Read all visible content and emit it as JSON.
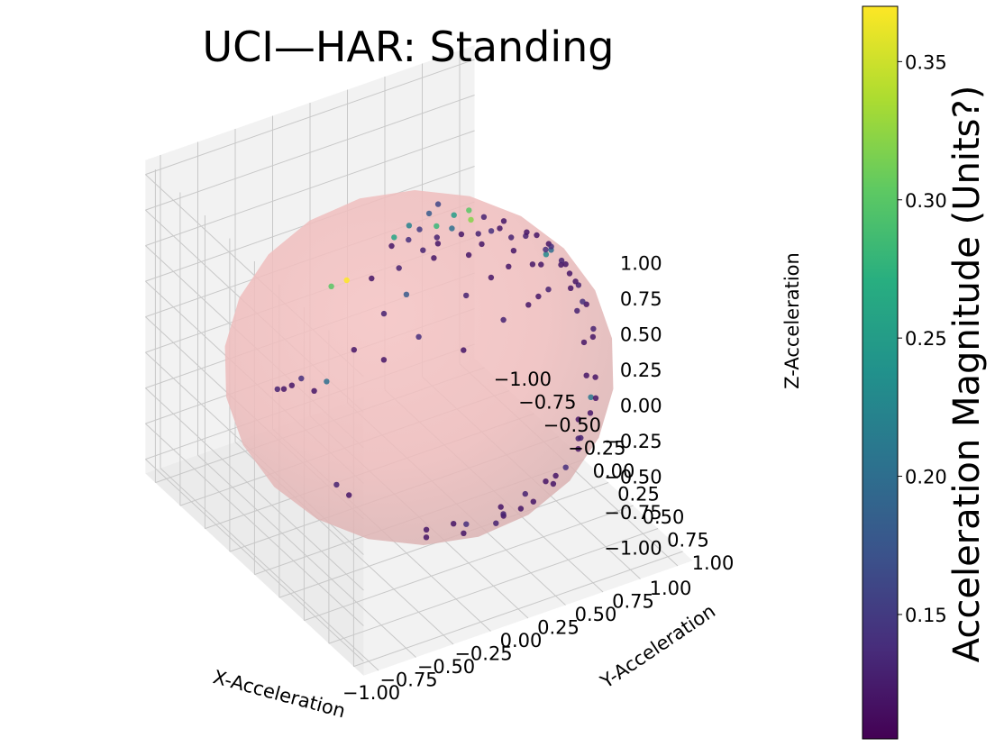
{
  "chart_data": {
    "type": "scatter",
    "title": "UCI—HAR: Standing",
    "xlabel": "X-Acceleration",
    "ylabel": "Y-Acceleration",
    "zlabel": "Z-Acceleration",
    "xlim": [
      -1.1,
      1.1
    ],
    "ylim": [
      -1.1,
      1.1
    ],
    "zlim": [
      -1.1,
      1.1
    ],
    "x_ticks": [
      "−1.00",
      "−0.75",
      "−0.50",
      "−0.25",
      "0.00",
      "0.25",
      "0.50",
      "0.75",
      "1.00"
    ],
    "y_ticks": [
      "−1.00",
      "−0.75",
      "−0.50",
      "−0.25",
      "0.00",
      "0.25",
      "0.50",
      "0.75",
      "1.00"
    ],
    "z_ticks": [
      "−1.00",
      "−0.75",
      "−0.50",
      "−0.25",
      "0.00",
      "0.25",
      "0.50",
      "0.75",
      "1.00"
    ],
    "tick_values": [
      -1.0,
      -0.75,
      -0.5,
      -0.25,
      0.0,
      0.25,
      0.5,
      0.75,
      1.0
    ],
    "grid": true,
    "sphere": {
      "radius": 1.0,
      "color": "#f4bcbc",
      "opacity": 0.7
    },
    "colorbar": {
      "label": "Acceleration Magnitude (Units?)",
      "range": [
        0.105,
        0.37
      ],
      "ticks": [
        0.15,
        0.2,
        0.25,
        0.3,
        0.35
      ],
      "tick_labels": [
        "0.15",
        "0.20",
        "0.25",
        "0.30",
        "0.35"
      ],
      "colormap": "viridis"
    },
    "points": [
      {
        "x": 0.05,
        "y": 0.1,
        "z": 0.99,
        "c": 0.28
      },
      {
        "x": 0.12,
        "y": 0.15,
        "z": 0.98,
        "c": 0.2
      },
      {
        "x": -0.05,
        "y": 0.08,
        "z": 0.99,
        "c": 0.15
      },
      {
        "x": 0.2,
        "y": 0.05,
        "z": 0.98,
        "c": 0.25
      },
      {
        "x": 0.28,
        "y": 0.1,
        "z": 0.95,
        "c": 0.32
      },
      {
        "x": 0.32,
        "y": 0.02,
        "z": 0.95,
        "c": 0.3
      },
      {
        "x": -0.15,
        "y": 0.12,
        "z": 0.98,
        "c": 0.14
      },
      {
        "x": -0.08,
        "y": 0.02,
        "z": 0.99,
        "c": 0.22
      },
      {
        "x": 0.08,
        "y": -0.02,
        "z": 0.99,
        "c": 0.18
      },
      {
        "x": 0.15,
        "y": 0.2,
        "z": 0.96,
        "c": 0.12
      },
      {
        "x": -0.2,
        "y": 0.05,
        "z": 0.97,
        "c": 0.26
      },
      {
        "x": 0.0,
        "y": 0.18,
        "z": 0.98,
        "c": 0.13
      },
      {
        "x": -0.55,
        "y": 0.1,
        "z": 0.83,
        "c": 0.37
      },
      {
        "x": -0.62,
        "y": 0.05,
        "z": 0.78,
        "c": 0.3
      },
      {
        "x": -0.45,
        "y": 0.2,
        "z": 0.87,
        "c": 0.12
      },
      {
        "x": -0.3,
        "y": 0.25,
        "z": 0.92,
        "c": 0.13
      },
      {
        "x": 0.22,
        "y": 0.3,
        "z": 0.93,
        "c": 0.12
      },
      {
        "x": 0.35,
        "y": 0.2,
        "z": 0.91,
        "c": 0.14
      },
      {
        "x": 0.1,
        "y": 0.35,
        "z": 0.93,
        "c": 0.12
      },
      {
        "x": -0.1,
        "y": 0.3,
        "z": 0.95,
        "c": 0.12
      },
      {
        "x": 0.45,
        "y": 0.25,
        "z": 0.86,
        "c": 0.13
      },
      {
        "x": 0.3,
        "y": 0.45,
        "z": 0.84,
        "c": 0.12
      },
      {
        "x": -0.35,
        "y": 0.4,
        "z": 0.85,
        "c": 0.18
      },
      {
        "x": -0.7,
        "y": 0.4,
        "z": 0.59,
        "c": 0.12
      },
      {
        "x": -0.4,
        "y": 0.6,
        "z": 0.7,
        "c": 0.14
      },
      {
        "x": -0.2,
        "y": 0.75,
        "z": 0.63,
        "c": 0.12
      },
      {
        "x": 0.1,
        "y": 0.7,
        "z": 0.7,
        "c": 0.13
      },
      {
        "x": 0.3,
        "y": 0.65,
        "z": 0.7,
        "c": 0.12
      },
      {
        "x": 0.5,
        "y": 0.55,
        "z": 0.67,
        "c": 0.13
      },
      {
        "x": 0.55,
        "y": 0.4,
        "z": 0.73,
        "c": 0.12
      },
      {
        "x": 0.65,
        "y": 0.3,
        "z": 0.7,
        "c": 0.23
      },
      {
        "x": 0.75,
        "y": 0.2,
        "z": 0.63,
        "c": 0.2
      },
      {
        "x": 0.8,
        "y": 0.1,
        "z": 0.59,
        "c": 0.12
      },
      {
        "x": 0.85,
        "y": 0.05,
        "z": 0.52,
        "c": 0.14
      },
      {
        "x": 0.88,
        "y": 0.15,
        "z": 0.45,
        "c": 0.12
      },
      {
        "x": 0.9,
        "y": 0.25,
        "z": 0.36,
        "c": 0.13
      },
      {
        "x": 0.92,
        "y": 0.3,
        "z": 0.25,
        "c": 0.12
      },
      {
        "x": 0.94,
        "y": 0.1,
        "z": 0.33,
        "c": 0.12
      },
      {
        "x": 0.96,
        "y": 0.2,
        "z": 0.19,
        "c": 0.14
      },
      {
        "x": 0.98,
        "y": 0.05,
        "z": 0.18,
        "c": 0.12
      },
      {
        "x": 0.99,
        "y": 0.1,
        "z": 0.05,
        "c": 0.13
      },
      {
        "x": 0.97,
        "y": 0.2,
        "z": -0.1,
        "c": 0.12
      },
      {
        "x": 0.92,
        "y": 0.3,
        "z": -0.25,
        "c": 0.12
      },
      {
        "x": 0.85,
        "y": 0.45,
        "z": -0.28,
        "c": 0.21
      },
      {
        "x": 0.78,
        "y": 0.55,
        "z": -0.3,
        "c": 0.12
      },
      {
        "x": 0.8,
        "y": 0.4,
        "z": -0.45,
        "c": 0.12
      },
      {
        "x": 0.7,
        "y": 0.55,
        "z": -0.45,
        "c": 0.13
      },
      {
        "x": 0.6,
        "y": 0.7,
        "z": -0.39,
        "c": 0.12
      },
      {
        "x": 0.45,
        "y": 0.8,
        "z": -0.4,
        "c": 0.14
      },
      {
        "x": 0.35,
        "y": 0.85,
        "z": -0.39,
        "c": 0.12
      },
      {
        "x": 0.25,
        "y": 0.9,
        "z": -0.36,
        "c": 0.12
      },
      {
        "x": 0.1,
        "y": 0.92,
        "z": -0.38,
        "c": 0.13
      },
      {
        "x": -0.05,
        "y": 0.9,
        "z": -0.43,
        "c": 0.12
      },
      {
        "x": 0.15,
        "y": 0.8,
        "z": -0.58,
        "c": 0.12
      },
      {
        "x": 0.3,
        "y": 0.7,
        "z": -0.65,
        "c": 0.12
      },
      {
        "x": 0.05,
        "y": 0.7,
        "z": -0.71,
        "c": 0.13
      },
      {
        "x": -0.1,
        "y": 0.6,
        "z": -0.79,
        "c": 0.12
      },
      {
        "x": 0.2,
        "y": 0.55,
        "z": -0.81,
        "c": 0.12
      },
      {
        "x": -0.25,
        "y": 0.45,
        "z": -0.86,
        "c": 0.12
      },
      {
        "x": 0.05,
        "y": 0.4,
        "z": -0.91,
        "c": 0.14
      },
      {
        "x": -0.15,
        "y": 0.3,
        "z": -0.94,
        "c": 0.12
      },
      {
        "x": -0.8,
        "y": 0.5,
        "z": -0.33,
        "c": 0.12
      },
      {
        "x": -0.85,
        "y": 0.45,
        "z": -0.27,
        "c": 0.13
      },
      {
        "x": -0.9,
        "y": 0.3,
        "z": 0.31,
        "c": 0.12
      },
      {
        "x": -0.92,
        "y": 0.2,
        "z": 0.34,
        "c": 0.14
      },
      {
        "x": -0.95,
        "y": 0.15,
        "z": 0.27,
        "c": 0.12
      },
      {
        "x": -0.97,
        "y": 0.1,
        "z": 0.22,
        "c": 0.12
      },
      {
        "x": -0.98,
        "y": 0.05,
        "z": 0.19,
        "c": 0.13
      },
      {
        "x": -0.85,
        "y": 0.35,
        "z": 0.39,
        "c": 0.2
      },
      {
        "x": -0.6,
        "y": 0.55,
        "z": 0.58,
        "c": 0.12
      },
      {
        "x": -0.5,
        "y": 0.4,
        "z": 0.77,
        "c": 0.13
      },
      {
        "x": -0.25,
        "y": 0.1,
        "z": 0.96,
        "c": 0.12
      },
      {
        "x": 0.38,
        "y": 0.08,
        "z": 0.92,
        "c": 0.13
      },
      {
        "x": 0.42,
        "y": 0.18,
        "z": 0.89,
        "c": 0.12
      },
      {
        "x": 0.5,
        "y": 0.1,
        "z": 0.86,
        "c": 0.12
      },
      {
        "x": 0.58,
        "y": 0.2,
        "z": 0.79,
        "c": 0.13
      },
      {
        "x": 0.62,
        "y": 0.15,
        "z": 0.77,
        "c": 0.12
      },
      {
        "x": 0.68,
        "y": 0.25,
        "z": 0.69,
        "c": 0.14
      },
      {
        "x": 0.72,
        "y": 0.1,
        "z": 0.68,
        "c": 0.12
      },
      {
        "x": 0.75,
        "y": 0.3,
        "z": 0.59,
        "c": 0.12
      },
      {
        "x": 0.82,
        "y": 0.2,
        "z": 0.53,
        "c": 0.13
      },
      {
        "x": 0.86,
        "y": 0.28,
        "z": 0.42,
        "c": 0.12
      },
      {
        "x": -0.02,
        "y": 0.22,
        "z": 0.97,
        "c": 0.12
      },
      {
        "x": 0.18,
        "y": -0.08,
        "z": 0.98,
        "c": 0.16
      },
      {
        "x": 0.25,
        "y": 0.22,
        "z": 0.94,
        "c": 0.13
      },
      {
        "x": -0.12,
        "y": 0.22,
        "z": 0.96,
        "c": 0.13
      },
      {
        "x": 0.4,
        "y": 0.35,
        "z": 0.85,
        "c": 0.12
      },
      {
        "x": 0.48,
        "y": 0.42,
        "z": 0.77,
        "c": 0.12
      },
      {
        "x": 0.15,
        "y": 0.5,
        "z": 0.85,
        "c": 0.12
      },
      {
        "x": -0.05,
        "y": 0.55,
        "z": 0.83,
        "c": 0.13
      },
      {
        "x": 0.4,
        "y": 0.6,
        "z": 0.69,
        "c": 0.12
      },
      {
        "x": 0.9,
        "y": 0.4,
        "z": 0.15,
        "c": 0.13
      },
      {
        "x": 0.93,
        "y": 0.35,
        "z": 0.05,
        "c": 0.12
      },
      {
        "x": 0.88,
        "y": 0.45,
        "z": -0.15,
        "c": 0.12
      },
      {
        "x": 0.75,
        "y": 0.65,
        "z": -0.12,
        "c": 0.12
      },
      {
        "x": 0.55,
        "y": 0.8,
        "z": -0.23,
        "c": 0.13
      },
      {
        "x": 0.4,
        "y": 0.75,
        "z": -0.53,
        "c": 0.12
      },
      {
        "x": -0.3,
        "y": 0.8,
        "z": -0.52,
        "c": 0.12
      },
      {
        "x": 0.0,
        "y": 0.85,
        "z": -0.53,
        "c": 0.13
      }
    ]
  },
  "labels": {
    "title": "UCI—HAR: Standing",
    "xlabel": "X-Acceleration",
    "ylabel": "Y-Acceleration",
    "zlabel": "Z-Acceleration",
    "colorbar_label": "Acceleration Magnitude (Units?)"
  }
}
